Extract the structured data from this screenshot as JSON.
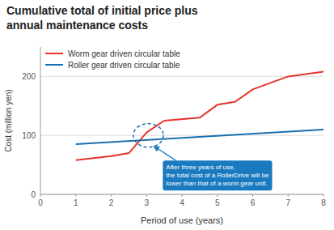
{
  "chart_data": {
    "type": "line",
    "title": "Cumulative total of initial price plus\nannual maintenance costs",
    "x_label": "Period of use (years)",
    "y_label": "Cost (million yen)",
    "xlim": [
      0,
      8
    ],
    "ylim": [
      0,
      250
    ],
    "xticks": [
      0,
      1,
      2,
      3,
      4,
      5,
      6,
      7,
      8
    ],
    "yticks": [
      0,
      100,
      200
    ],
    "grid": true,
    "legend": "upper left",
    "series": [
      {
        "name": "Worm gear driven circular table",
        "color": "#e8342a",
        "x": [
          1.0,
          2.0,
          2.0,
          2.5,
          2.5,
          3.0,
          3.0,
          3.5,
          3.5,
          4.5,
          4.5,
          5.0,
          5.0,
          5.5,
          5.5,
          6.0,
          6.0,
          7.0,
          7.0,
          8.0
        ],
        "values": [
          58,
          65,
          65,
          70,
          70,
          105,
          105,
          125,
          125,
          130,
          130,
          152,
          152,
          157,
          157,
          178,
          178,
          200,
          200,
          208
        ]
      },
      {
        "name": "Roller gear driven circular table",
        "color": "#1a6faf",
        "x": [
          1.0,
          8.0
        ],
        "values": [
          85,
          110
        ]
      }
    ],
    "highlight": {
      "x": 3.05,
      "y": 100,
      "width": 0.85,
      "height": 40,
      "color": "#1a6faf"
    },
    "annotation": {
      "text": "After three years of use,\nthe total cost of a RollerDrive will be\nlower than that of a worm gear unit.",
      "x": 3.2,
      "y": 82,
      "text_x": 3.55,
      "text_y": 52,
      "color": "#1a7abf"
    }
  }
}
